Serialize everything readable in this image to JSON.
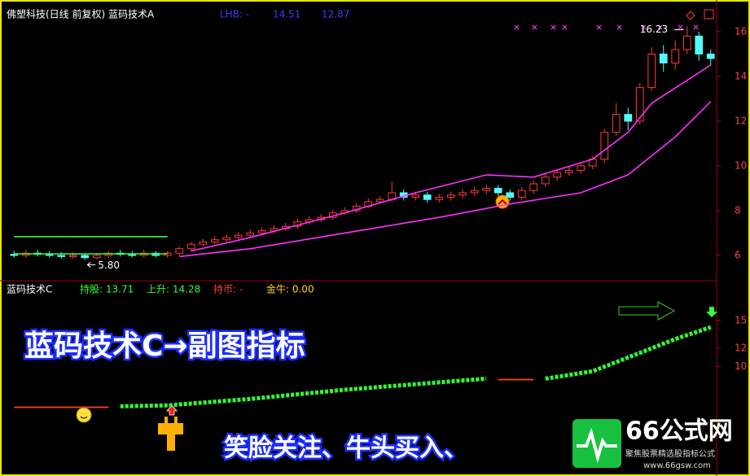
{
  "chart_data": [
    {
      "type": "candlestick",
      "title": "佛塑科技(日线 前复权) 蓝码技术A",
      "header_items": [
        {
          "text": "LHB: -",
          "color": "#3a3aff"
        },
        {
          "text": "14.51",
          "color": "#3a3aff"
        },
        {
          "text": "12.87",
          "color": "#3a3aff"
        }
      ],
      "open": [
        6.05,
        6.0,
        6.1,
        6.05,
        6.0,
        5.95,
        6.0,
        5.9,
        6.0,
        6.1,
        6.05,
        6.0,
        6.1,
        6.0,
        6.1,
        6.3,
        6.5,
        6.6,
        6.7,
        6.8,
        6.9,
        7.0,
        7.1,
        7.2,
        7.3,
        7.5,
        7.6,
        7.7,
        7.9,
        8.0,
        8.2,
        8.4,
        8.5,
        8.8,
        8.6,
        8.7,
        8.5,
        8.6,
        8.7,
        8.8,
        8.9,
        9.0,
        8.8,
        8.6,
        8.9,
        9.2,
        9.5,
        9.7,
        9.8,
        10.0,
        10.3,
        11.5,
        12.3,
        12.0,
        13.5,
        15.0,
        14.6,
        15.2,
        15.8,
        15.0
      ],
      "high": [
        6.2,
        6.25,
        6.25,
        6.2,
        6.15,
        6.15,
        6.1,
        6.1,
        6.2,
        6.25,
        6.2,
        6.25,
        6.2,
        6.2,
        6.4,
        6.6,
        6.75,
        6.85,
        6.95,
        7.05,
        7.15,
        7.25,
        7.35,
        7.45,
        7.65,
        7.75,
        7.85,
        8.05,
        8.15,
        8.35,
        8.55,
        8.65,
        9.3,
        8.95,
        8.85,
        8.85,
        8.75,
        8.85,
        8.95,
        9.05,
        9.15,
        9.15,
        8.95,
        9.05,
        9.35,
        9.65,
        9.85,
        9.95,
        10.15,
        10.45,
        11.65,
        12.8,
        12.6,
        13.7,
        15.3,
        15.4,
        15.6,
        16.23,
        16.0,
        15.2
      ],
      "low": [
        5.9,
        5.9,
        5.95,
        5.9,
        5.85,
        5.85,
        5.8,
        5.85,
        5.9,
        5.95,
        5.9,
        5.9,
        5.9,
        5.9,
        6.0,
        6.2,
        6.4,
        6.5,
        6.6,
        6.7,
        6.8,
        6.9,
        7.0,
        7.1,
        7.2,
        7.4,
        7.5,
        7.6,
        7.8,
        7.9,
        8.1,
        8.3,
        8.4,
        8.45,
        8.45,
        8.35,
        8.35,
        8.45,
        8.55,
        8.65,
        8.75,
        8.65,
        8.45,
        8.45,
        8.75,
        9.05,
        9.35,
        9.55,
        9.65,
        9.85,
        10.15,
        11.35,
        11.6,
        11.85,
        13.35,
        14.2,
        14.3,
        15.0,
        14.7,
        14.5
      ],
      "close": [
        6.0,
        6.1,
        6.05,
        6.0,
        5.95,
        6.0,
        5.9,
        6.0,
        6.1,
        6.05,
        6.0,
        6.1,
        6.0,
        6.1,
        6.3,
        6.5,
        6.6,
        6.7,
        6.8,
        6.9,
        7.0,
        7.1,
        7.2,
        7.3,
        7.5,
        7.6,
        7.7,
        7.9,
        8.0,
        8.2,
        8.4,
        8.5,
        8.8,
        8.6,
        8.7,
        8.5,
        8.6,
        8.7,
        8.8,
        8.9,
        9.0,
        8.8,
        8.6,
        8.9,
        9.2,
        9.5,
        9.7,
        9.8,
        10.0,
        10.3,
        11.5,
        12.3,
        12.0,
        13.5,
        15.0,
        14.6,
        15.2,
        15.8,
        15.0,
        14.8
      ],
      "up_color": "#ff3a3a",
      "down_color": "#54fcfc",
      "lines": [
        {
          "color": "#ff30ff",
          "x": [
            15,
            20,
            28,
            34,
            40,
            44,
            49,
            52,
            54,
            59
          ],
          "values": [
            6.2,
            6.8,
            7.9,
            8.8,
            9.6,
            9.5,
            10.3,
            11.5,
            12.8,
            14.51
          ]
        },
        {
          "color": "#ff30ff",
          "x": [
            14,
            20,
            28,
            36,
            42,
            48,
            52,
            56,
            59
          ],
          "values": [
            5.95,
            6.3,
            7.0,
            7.7,
            8.3,
            8.8,
            9.6,
            11.3,
            12.87
          ]
        },
        {
          "color": "#30ff30",
          "x": [
            0,
            13
          ],
          "values": [
            6.84,
            6.84
          ]
        },
        {
          "color": "#30ff30",
          "x": [
            0,
            13
          ],
          "values": [
            6.07,
            6.07
          ]
        }
      ],
      "annotations": [
        {
          "label": "5.80",
          "x": 6,
          "y": 5.8
        },
        {
          "label": "16.23",
          "x": 57,
          "y": 16.23
        }
      ],
      "xlim": [
        -0.5,
        59.5
      ],
      "ylim": [
        4.87,
        17.05
      ],
      "yticks": [
        6,
        8,
        10,
        12,
        14,
        16
      ]
    },
    {
      "type": "line",
      "title": "蓝码技术C",
      "header_items": [
        {
          "text": "持股: 13.71",
          "color": "#30ff30"
        },
        {
          "text": "上升: 14.28",
          "color": "#30ff30"
        },
        {
          "text": "持币: -",
          "color": "#ff3a3a"
        },
        {
          "text": "金牛: 0.00",
          "color": "#ffd700"
        }
      ],
      "lines": [
        {
          "color": "#e8401c",
          "x": [
            0,
            8
          ],
          "values": [
            5.6,
            5.6
          ]
        },
        {
          "color": "#30ff30",
          "x": [
            9,
            13,
            20,
            28,
            40
          ],
          "values": [
            5.7,
            5.8,
            6.5,
            7.5,
            8.7
          ]
        },
        {
          "color": "#e8401c",
          "x": [
            41,
            44
          ],
          "values": [
            8.6,
            8.6
          ]
        },
        {
          "color": "#30ff30",
          "x": [
            45,
            49,
            53,
            56,
            59
          ],
          "values": [
            8.7,
            9.5,
            11.5,
            13.0,
            14.28
          ]
        }
      ],
      "xlim": [
        -0.5,
        59.5
      ],
      "ylim": [
        -1.86,
        19.06
      ],
      "yticks": [
        15,
        12,
        10
      ]
    }
  ],
  "overlay": {
    "caption": "蓝码技术C→副图指标",
    "subcaption": "笑脸关注、牛头买入、"
  },
  "watermark": {
    "brand": "66公式网",
    "slogan": "聚焦股票精选股指标公式",
    "url": "www.66gsw.com"
  }
}
